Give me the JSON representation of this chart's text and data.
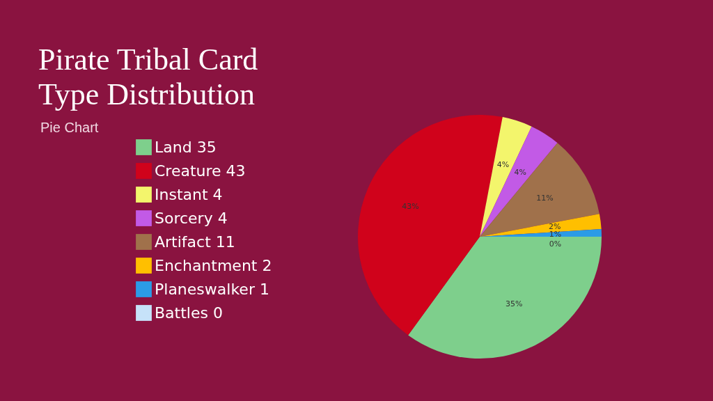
{
  "chart_data": {
    "type": "pie",
    "title": "Pirate Tribal Card\nType Distribution",
    "subtitle": "Pie Chart",
    "categories": [
      "Land 35",
      "Creature 43",
      "Instant 4",
      "Sorcery 4",
      "Artifact 11",
      "Enchantment 2",
      "Planeswalker 1",
      "Battles 0"
    ],
    "values": [
      35,
      43,
      4,
      4,
      11,
      2,
      1,
      0
    ],
    "colors": [
      "#7ecf8c",
      "#d0021b",
      "#f3f56c",
      "#c25ae6",
      "#a0714b",
      "#ffbf00",
      "#2b9be6",
      "#c6e2f9"
    ],
    "value_labels": [
      "35%",
      "43%",
      "4%",
      "4%",
      "11%",
      "2%",
      "1%",
      "0%"
    ],
    "legend": "left"
  }
}
